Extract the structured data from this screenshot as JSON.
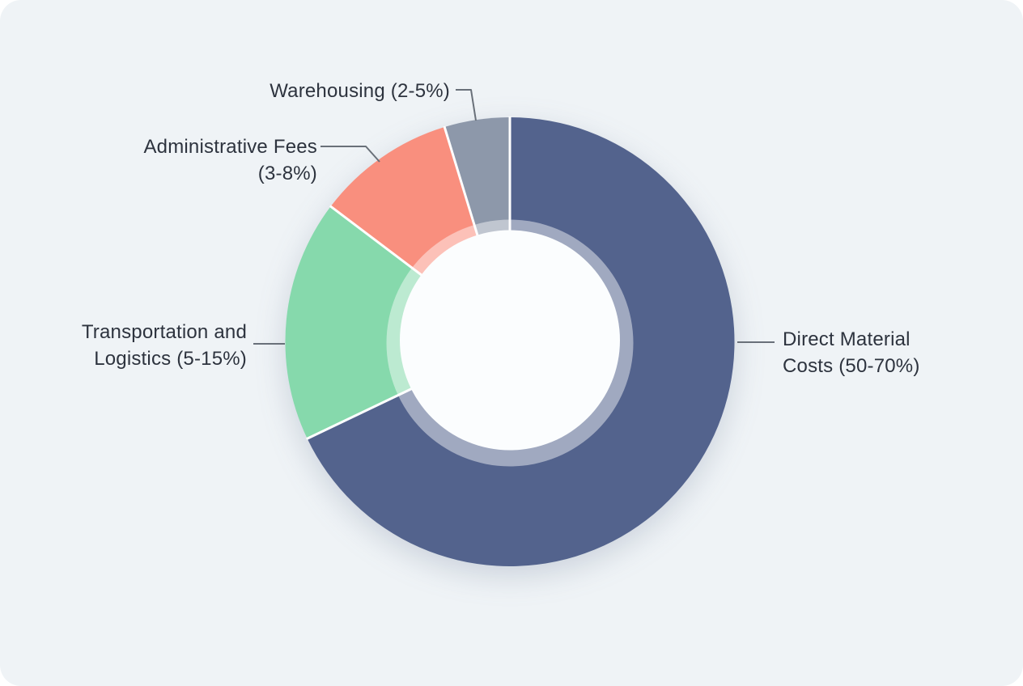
{
  "panel": {
    "background_color": "#eff3f6",
    "outer_background_color": "#ffffff"
  },
  "chart_data": {
    "type": "pie",
    "subtype": "donut",
    "direction": "clockwise",
    "start_angle_deg": 0,
    "legend_position": "none",
    "grid": false,
    "slices": [
      {
        "label": "Direct Material Costs (50-70%)",
        "label_lines": [
          "Direct Material",
          "Costs (50-70%)"
        ],
        "range": "50-70%",
        "value_pct": 67.9,
        "color": "#53638d"
      },
      {
        "label": "Transportation and Logistics (5-15%)",
        "label_lines": [
          "Transportation and",
          "Logistics (5-15%)"
        ],
        "range": "5-15%",
        "value_pct": 17.4,
        "color": "#86d9ac"
      },
      {
        "label": "Administrative Fees (3-8%)",
        "label_lines": [
          "Administrative Fees",
          "(3-8%)"
        ],
        "range": "3-8%",
        "value_pct": 10.0,
        "color": "#f98f7e"
      },
      {
        "label": "Warehousing (2-5%)",
        "label_lines": [
          "Warehousing (2-5%)"
        ],
        "range": "2-5%",
        "value_pct": 4.7,
        "color": "#8d98aa"
      }
    ],
    "divider_color": "#ffffff",
    "leader_line_color": "#697079",
    "label_color": "#2d333e",
    "hole_color": "#fbfdfe",
    "inner_ring_color": "rgba(255,255,255,0.45)"
  }
}
